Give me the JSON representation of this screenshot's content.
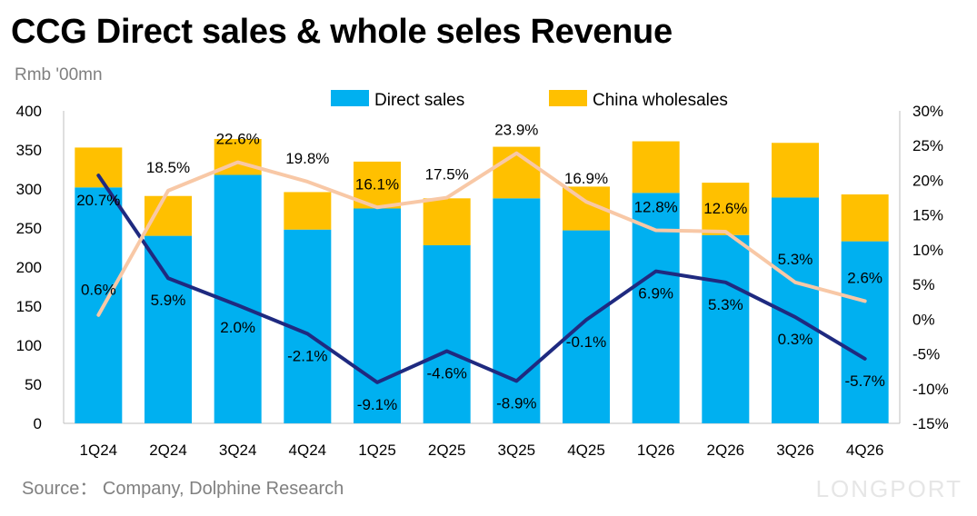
{
  "title": "CCG Direct sales & whole seles Revenue",
  "unit": "Rmb '00mn",
  "source": "Source： Company, Dolphine Research",
  "watermark": "LONGPORT",
  "colors": {
    "direct": "#00B0F0",
    "wholesale": "#FFC000",
    "line_dark": "#1F2A80",
    "line_light": "#F8C8A6",
    "grid": "#d9d9d9",
    "axis_text": "#000000"
  },
  "chart_data": {
    "type": "bar",
    "stacked": true,
    "categories": [
      "1Q24",
      "2Q24",
      "3Q24",
      "4Q24",
      "1Q25",
      "2Q25",
      "3Q25",
      "4Q25",
      "1Q26",
      "2Q26",
      "3Q26",
      "4Q26"
    ],
    "series": [
      {
        "name": "Direct sales",
        "axis": "left",
        "type": "bar",
        "values": [
          302,
          240,
          318,
          248,
          275,
          228,
          288,
          247,
          295,
          241,
          289,
          233
        ]
      },
      {
        "name": "China wholesales",
        "axis": "left",
        "type": "bar",
        "values": [
          51,
          51,
          46,
          48,
          60,
          60,
          66,
          56,
          66,
          67,
          70,
          60
        ]
      },
      {
        "axis": "right",
        "type": "line",
        "values": [
          20.7,
          5.9,
          2.0,
          -2.1,
          -9.1,
          -4.6,
          -8.9,
          -0.1,
          6.9,
          5.3,
          0.3,
          -5.7
        ],
        "labels": [
          "20.7%",
          "5.9%",
          "2.0%",
          "-2.1%",
          "-9.1%",
          "-4.6%",
          "-8.9%",
          "-0.1%",
          "6.9%",
          "5.3%",
          "0.3%",
          "-5.7%"
        ]
      },
      {
        "axis": "right",
        "type": "line",
        "values": [
          0.6,
          18.5,
          22.6,
          19.8,
          16.1,
          17.5,
          23.9,
          16.9,
          12.8,
          12.6,
          5.3,
          2.6
        ],
        "labels": [
          "0.6%",
          "18.5%",
          "22.6%",
          "19.8%",
          "16.1%",
          "17.5%",
          "23.9%",
          "16.9%",
          "12.8%",
          "12.6%",
          "5.3%",
          "2.6%"
        ]
      }
    ],
    "ylim": [
      0,
      400
    ],
    "yticks": [
      "400",
      "350",
      "300",
      "250",
      "200",
      "150",
      "100",
      "50",
      "0"
    ],
    "y2lim": [
      -15,
      30
    ],
    "y2ticks": [
      "30%",
      "25%",
      "20%",
      "15%",
      "10%",
      "5%",
      "0%",
      "-5%",
      "-10%",
      "-15%"
    ],
    "legend": [
      "Direct sales",
      "China wholesales"
    ],
    "legend_position": "top-center",
    "grid": false
  }
}
